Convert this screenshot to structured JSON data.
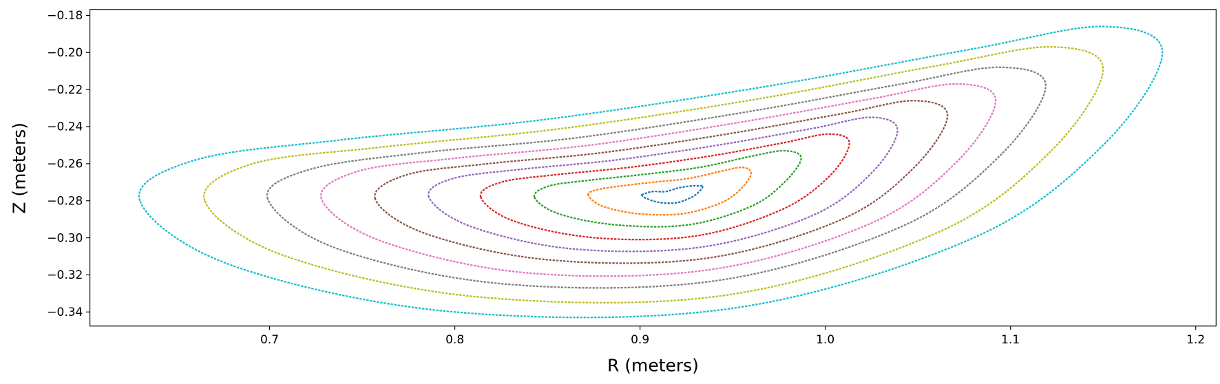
{
  "chart_data": {
    "type": "line",
    "closed": true,
    "x_label": "R (meters)",
    "y_label": "Z (meters)",
    "xlim": [
      0.603,
      1.211
    ],
    "ylim": [
      -0.3476,
      -0.1768
    ],
    "xticks": [
      0.7,
      0.8,
      0.9,
      {
        "value": 1.0,
        "label": "1.0"
      },
      1.1,
      1.2
    ],
    "yticks": [
      {
        "value": -0.18,
        "label": "−0.18"
      },
      {
        "value": -0.2,
        "label": "−0.20"
      },
      {
        "value": -0.22,
        "label": "−0.22"
      },
      {
        "value": -0.24,
        "label": "−0.24"
      },
      {
        "value": -0.26,
        "label": "−0.26"
      },
      {
        "value": -0.28,
        "label": "−0.28"
      },
      {
        "value": -0.3,
        "label": "−0.30"
      },
      {
        "value": -0.32,
        "label": "−0.32"
      },
      {
        "value": -0.34,
        "label": "−0.34"
      }
    ],
    "series": [
      {
        "color": "#1f77b4",
        "x": [
          0.901,
          0.903,
          0.907,
          0.914,
          0.921,
          0.928,
          0.932,
          0.934,
          0.932,
          0.928,
          0.92,
          0.911,
          0.904
        ],
        "values": [
          -0.277,
          -0.276,
          -0.275,
          -0.275,
          -0.273,
          -0.272,
          -0.272,
          -0.272,
          -0.275,
          -0.278,
          -0.281,
          -0.281,
          -0.279
        ]
      },
      {
        "color": "#ff7f0e",
        "x": [
          0.872,
          0.877,
          0.89,
          0.907,
          0.926,
          0.944,
          0.955,
          0.96,
          0.955,
          0.944,
          0.923,
          0.899,
          0.88
        ],
        "values": [
          -0.277,
          -0.274,
          -0.272,
          -0.27,
          -0.268,
          -0.264,
          -0.262,
          -0.265,
          -0.273,
          -0.281,
          -0.287,
          -0.287,
          -0.283
        ]
      },
      {
        "color": "#2ca02c",
        "x": [
          0.843,
          0.851,
          0.872,
          0.9,
          0.932,
          0.96,
          0.978,
          0.987,
          0.978,
          0.96,
          0.926,
          0.887,
          0.856
        ],
        "values": [
          -0.278,
          -0.272,
          -0.269,
          -0.266,
          -0.262,
          -0.256,
          -0.253,
          -0.257,
          -0.27,
          -0.283,
          -0.293,
          -0.293,
          -0.287
        ]
      },
      {
        "color": "#d62728",
        "x": [
          0.814,
          0.825,
          0.854,
          0.894,
          0.937,
          0.976,
          1.002,
          1.013,
          1.002,
          0.976,
          0.93,
          0.876,
          0.832
        ],
        "values": [
          -0.278,
          -0.27,
          -0.266,
          -0.262,
          -0.256,
          -0.249,
          -0.244,
          -0.249,
          -0.267,
          -0.285,
          -0.299,
          -0.3,
          -0.291
        ]
      },
      {
        "color": "#9467bd",
        "x": [
          0.786,
          0.799,
          0.836,
          0.887,
          0.942,
          0.993,
          1.025,
          1.039,
          1.025,
          0.993,
          0.933,
          0.864,
          0.809
        ],
        "values": [
          -0.278,
          -0.268,
          -0.263,
          -0.258,
          -0.25,
          -0.241,
          -0.235,
          -0.242,
          -0.265,
          -0.288,
          -0.305,
          -0.306,
          -0.294
        ]
      },
      {
        "color": "#8c564b",
        "x": [
          0.757,
          0.774,
          0.818,
          0.88,
          0.947,
          1.009,
          1.048,
          1.066,
          1.048,
          1.009,
          0.936,
          0.852,
          0.785
        ],
        "values": [
          -0.279,
          -0.266,
          -0.26,
          -0.254,
          -0.244,
          -0.233,
          -0.226,
          -0.234,
          -0.262,
          -0.29,
          -0.311,
          -0.312,
          -0.298
        ]
      },
      {
        "color": "#e377c2",
        "x": [
          0.728,
          0.748,
          0.801,
          0.873,
          0.952,
          1.025,
          1.071,
          1.092,
          1.071,
          1.025,
          0.939,
          0.84,
          0.761
        ],
        "values": [
          -0.279,
          -0.264,
          -0.257,
          -0.25,
          -0.238,
          -0.225,
          -0.217,
          -0.226,
          -0.259,
          -0.292,
          -0.317,
          -0.319,
          -0.302
        ]
      },
      {
        "color": "#7f7f7f",
        "x": [
          0.699,
          0.722,
          0.783,
          0.866,
          0.958,
          1.041,
          1.094,
          1.119,
          1.094,
          1.041,
          0.942,
          0.828,
          0.737
        ],
        "values": [
          -0.279,
          -0.263,
          -0.254,
          -0.246,
          -0.232,
          -0.217,
          -0.208,
          -0.218,
          -0.256,
          -0.294,
          -0.323,
          -0.325,
          -0.306
        ]
      },
      {
        "color": "#bcbd22",
        "x": [
          0.665,
          0.691,
          0.761,
          0.858,
          0.964,
          1.061,
          1.122,
          1.15,
          1.122,
          1.061,
          0.946,
          0.814,
          0.709
        ],
        "values": [
          -0.28,
          -0.26,
          -0.251,
          -0.241,
          -0.225,
          -0.207,
          -0.197,
          -0.209,
          -0.253,
          -0.297,
          -0.331,
          -0.332,
          -0.31
        ]
      },
      {
        "color": "#17becf",
        "x": [
          0.63,
          0.66,
          0.74,
          0.85,
          0.97,
          1.08,
          1.15,
          1.182,
          1.15,
          1.08,
          0.95,
          0.8,
          0.68
        ],
        "values": [
          -0.28,
          -0.258,
          -0.247,
          -0.236,
          -0.218,
          -0.198,
          -0.186,
          -0.2,
          -0.25,
          -0.3,
          -0.338,
          -0.34,
          -0.315
        ]
      }
    ]
  }
}
